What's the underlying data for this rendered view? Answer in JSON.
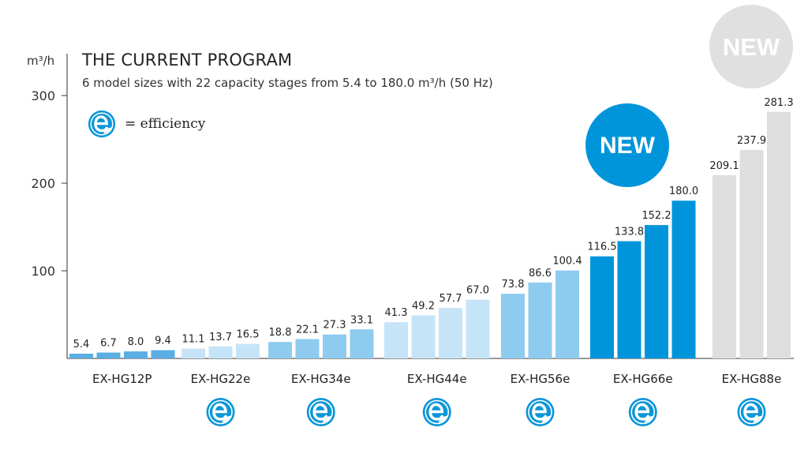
{
  "header": {
    "title": "THE CURRENT PROGRAM",
    "subtitle": "6 model sizes with 22 capacity stages from 5.4 to 180.0 m³/h (50 Hz)",
    "legend_text": "= efficiency"
  },
  "badges": {
    "new_blue": "NEW",
    "new_grey": "NEW"
  },
  "colors": {
    "g1": "#5aaee4",
    "g2": "#c6e4f7",
    "g3": "#8fcbef",
    "new_blue": "#0095db",
    "grey": "#dedede",
    "grey_badge": "#e0e0e0",
    "eff_icon": "#0a96d8",
    "axis": "#333333"
  },
  "chart_data": {
    "type": "bar",
    "ylabel": "m³/h",
    "ylim": [
      0,
      300
    ],
    "yticks": [
      100,
      200,
      300
    ],
    "groups": [
      {
        "name": "EX-HG12P",
        "values": [
          5.4,
          6.7,
          8.0,
          9.4
        ],
        "labels": [
          "5.4",
          "6.7",
          "8.0",
          "9.4"
        ],
        "style": "g1",
        "efficiency": false
      },
      {
        "name": "EX-HG22e",
        "values": [
          11.1,
          13.7,
          16.5
        ],
        "labels": [
          "11.1",
          "13.7",
          "16.5"
        ],
        "style": "g2",
        "efficiency": true
      },
      {
        "name": "EX-HG34e",
        "values": [
          18.8,
          22.1,
          27.3,
          33.1
        ],
        "labels": [
          "18.8",
          "22.1",
          "27.3",
          "33.1"
        ],
        "style": "g3",
        "efficiency": true
      },
      {
        "name": "EX-HG44e",
        "values": [
          41.3,
          49.2,
          57.7,
          67.0
        ],
        "labels": [
          "41.3",
          "49.2",
          "57.7",
          "67.0"
        ],
        "style": "g2",
        "efficiency": true
      },
      {
        "name": "EX-HG56e",
        "values": [
          73.8,
          86.6,
          100.4
        ],
        "labels": [
          "73.8",
          "86.6",
          "100.4"
        ],
        "style": "g3",
        "efficiency": true
      },
      {
        "name": "EX-HG66e",
        "values": [
          116.5,
          133.8,
          152.2,
          180.0
        ],
        "labels": [
          "116.5",
          "133.8",
          "152.2",
          "180.0"
        ],
        "style": "new_blue",
        "efficiency": true
      },
      {
        "name": "EX-HG88e",
        "values": [
          209.1,
          237.9,
          281.3
        ],
        "labels": [
          "209.1",
          "237.9",
          "281.3"
        ],
        "style": "grey",
        "efficiency": true
      }
    ]
  }
}
